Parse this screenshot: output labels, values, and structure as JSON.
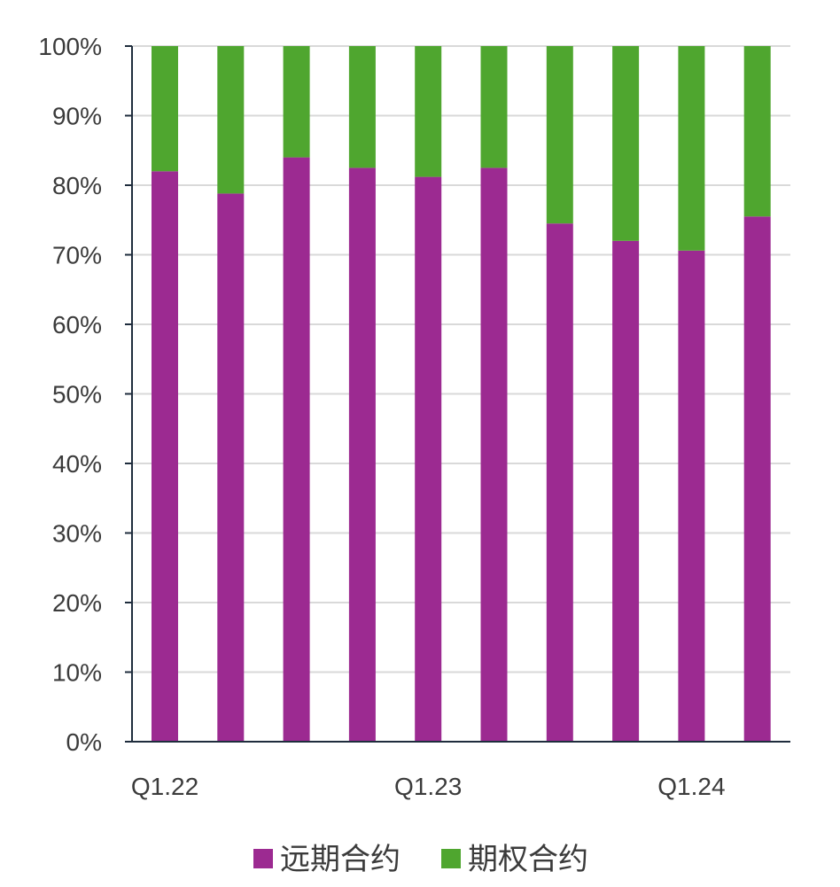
{
  "chart_data": {
    "type": "bar",
    "stacked": true,
    "percent": true,
    "categories": [
      "Q1.22",
      "",
      "",
      "",
      "Q1.23",
      "",
      "",
      "",
      "Q1.24",
      ""
    ],
    "x_tick_labels": [
      "Q1.22",
      "Q1.23",
      "Q1.24"
    ],
    "y_tick_labels": [
      "0%",
      "10%",
      "20%",
      "30%",
      "40%",
      "50%",
      "60%",
      "70%",
      "80%",
      "90%",
      "100%"
    ],
    "ylim": [
      0,
      100
    ],
    "grid": true,
    "legend_position": "bottom",
    "series": [
      {
        "name": "远期合约",
        "color": "#9C2A91",
        "values": [
          82,
          78.8,
          84,
          82.5,
          81.2,
          82.5,
          74.5,
          72,
          70.6,
          75.5
        ]
      },
      {
        "name": "期权合约",
        "color": "#4FA62F",
        "values": [
          18,
          21.2,
          16,
          17.5,
          18.8,
          17.5,
          25.5,
          28,
          29.4,
          24.5
        ]
      }
    ]
  }
}
